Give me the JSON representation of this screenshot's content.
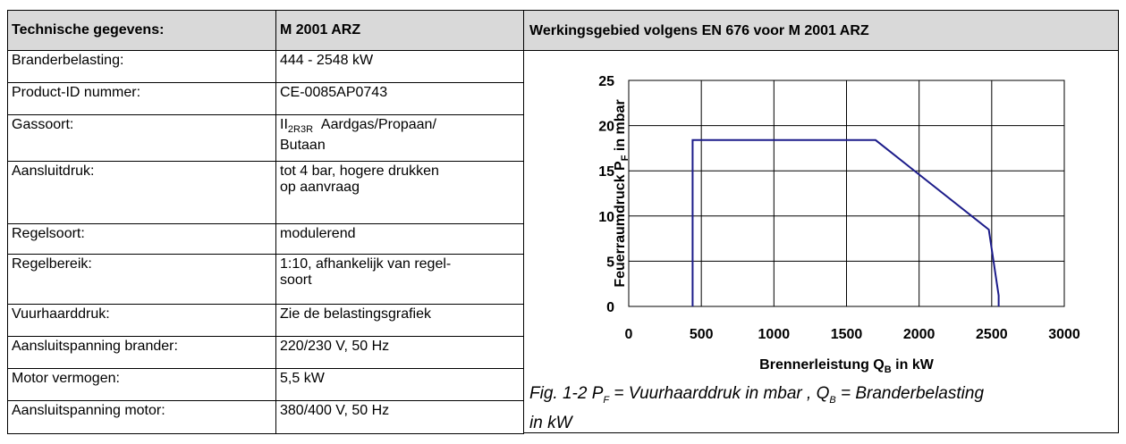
{
  "table": {
    "header": [
      "Technische gegevens:",
      "M 2001 ARZ"
    ],
    "rows": [
      [
        "Branderbelasting:",
        "444 - 2548 kW"
      ],
      [
        "Product-ID nummer:",
        "CE-0085AP0743"
      ],
      [
        "Gassoort:",
        {
          "main": "II",
          "sub": "2R3R",
          "lines": [
            "Aardgas/Propaan/",
            "Butaan"
          ]
        }
      ],
      [
        "Aansluitdruk:",
        [
          "tot 4 bar, hogere drukken",
          "op aanvraag"
        ]
      ],
      [
        "Regelsoort:",
        "modulerend"
      ],
      [
        "Regelbereik:",
        [
          "1:10, afhankelijk van regel-",
          "soort"
        ]
      ],
      [
        "Vuurhaarddruk:",
        "Zie de belastingsgrafiek"
      ],
      [
        "Aansluitspanning brander:",
        "220/230 V, 50 Hz"
      ],
      [
        "Motor vermogen:",
        "5,5 kW"
      ],
      [
        "Aansluitspanning motor:",
        "380/400 V, 50 Hz"
      ]
    ]
  },
  "chart_data": {
    "type": "line",
    "title": "Werkingsgebied volgens EN 676 voor M 2001 ARZ",
    "x_label": [
      "Brennerleistung Q",
      "B",
      " in kW"
    ],
    "y_label": [
      "Feuerraumdruck P",
      "F",
      " in mbar"
    ],
    "x": [
      440,
      440,
      1700,
      2480,
      2548,
      2548
    ],
    "series": [
      {
        "color": "#1c1c8a",
        "values": [
          0,
          18.4,
          18.4,
          8.5,
          1.2,
          0
        ]
      }
    ],
    "xlim": [
      0,
      3000
    ],
    "xticks": [
      0,
      500,
      1000,
      1500,
      2000,
      2500,
      3000
    ],
    "ylim": [
      0,
      25
    ],
    "yticks": [
      0,
      5,
      10,
      15,
      20,
      25
    ],
    "grid": true,
    "caption": [
      "Fig. 1-2 P",
      "F",
      " = Vuurhaarddruk in mbar , Q",
      "B",
      " = Branderbelasting",
      "in kW"
    ]
  }
}
